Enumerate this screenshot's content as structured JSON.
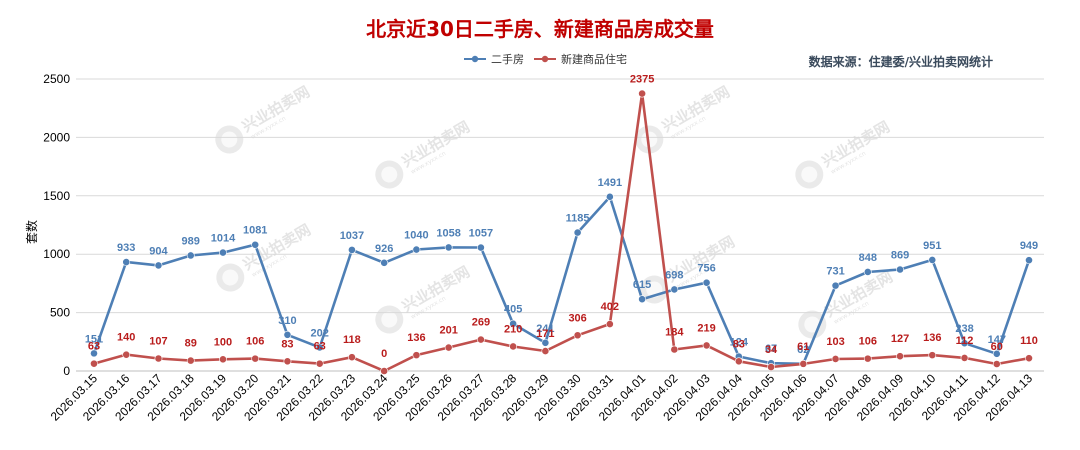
{
  "chart_data": {
    "type": "line",
    "title": "北京近30日二手房、新建商品房成交量",
    "source": "数据来源：住建委/兴业拍卖网统计",
    "ylabel": "套数",
    "ylim": [
      0,
      2500
    ],
    "yticks": [
      0,
      500,
      1000,
      1500,
      2000,
      2500
    ],
    "grid": true,
    "legend_position": "top-center",
    "categories": [
      "2026.03.15",
      "2026.03.16",
      "2026.03.17",
      "2026.03.18",
      "2026.03.19",
      "2026.03.20",
      "2026.03.21",
      "2026.03.22",
      "2026.03.23",
      "2026.03.24",
      "2026.03.25",
      "2026.03.26",
      "2026.03.27",
      "2026.03.28",
      "2026.03.29",
      "2026.03.30",
      "2026.03.31",
      "2026.04.01",
      "2026.04.02",
      "2026.04.03",
      "2026.04.04",
      "2026.04.05",
      "2026.04.06",
      "2026.04.07",
      "2026.04.08",
      "2026.04.09",
      "2026.04.10",
      "2026.04.11",
      "2026.04.12",
      "2026.04.13"
    ],
    "series": [
      {
        "name": "二手房",
        "color": "#4e7fb5",
        "values": [
          151,
          933,
          904,
          989,
          1014,
          1081,
          310,
          202,
          1037,
          926,
          1040,
          1058,
          1057,
          405,
          241,
          1185,
          1491,
          615,
          698,
          756,
          124,
          67,
          62,
          731,
          848,
          869,
          951,
          238,
          147,
          949
        ]
      },
      {
        "name": "新建商品住宅",
        "color": "#c0504d",
        "values": [
          63,
          140,
          107,
          89,
          100,
          106,
          83,
          63,
          118,
          0,
          136,
          201,
          269,
          210,
          171,
          306,
          402,
          2375,
          184,
          219,
          83,
          34,
          61,
          103,
          106,
          127,
          136,
          112,
          60,
          110
        ]
      }
    ]
  },
  "watermark": {
    "text": "兴业拍卖网",
    "sub": "www.xyxx.cn"
  }
}
